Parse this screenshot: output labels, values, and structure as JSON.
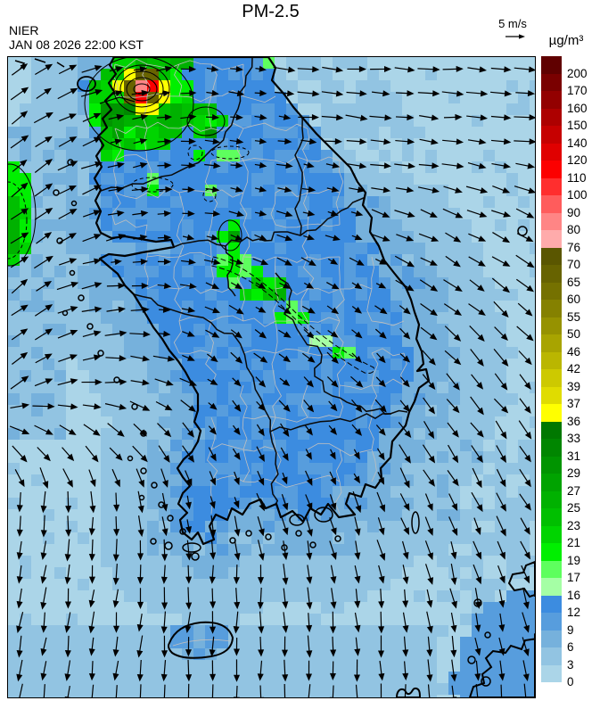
{
  "header": {
    "source": "NIER",
    "timestamp": "JAN 08 2026 22:00 KST",
    "title": "PM-2.5",
    "wind_scale": "5 m/s",
    "units": "µg/m³"
  },
  "colorbar": {
    "units": "µg/m³",
    "blocks": [
      {
        "label": "200",
        "color": "#600000"
      },
      {
        "label": "170",
        "color": "#7a0000"
      },
      {
        "label": "160",
        "color": "#930000"
      },
      {
        "label": "150",
        "color": "#ad0000"
      },
      {
        "label": "140",
        "color": "#c60000"
      },
      {
        "label": "120",
        "color": "#e00000"
      },
      {
        "label": "110",
        "color": "#fc0000"
      },
      {
        "label": "100",
        "color": "#ff2e2e"
      },
      {
        "label": "90",
        "color": "#ff5c5c"
      },
      {
        "label": "80",
        "color": "#ff8585"
      },
      {
        "label": "76",
        "color": "#ffabab"
      },
      {
        "label": "70",
        "color": "#5a5600"
      },
      {
        "label": "65",
        "color": "#676300"
      },
      {
        "label": "60",
        "color": "#757100"
      },
      {
        "label": "55",
        "color": "#858100"
      },
      {
        "label": "50",
        "color": "#969200"
      },
      {
        "label": "46",
        "color": "#a8a400"
      },
      {
        "label": "42",
        "color": "#bab600"
      },
      {
        "label": "39",
        "color": "#cdc900"
      },
      {
        "label": "37",
        "color": "#e0dc00"
      },
      {
        "label": "36",
        "color": "#ffff00"
      },
      {
        "label": "33",
        "color": "#007800"
      },
      {
        "label": "31",
        "color": "#008600"
      },
      {
        "label": "29",
        "color": "#009400"
      },
      {
        "label": "27",
        "color": "#00a300"
      },
      {
        "label": "25",
        "color": "#00b100"
      },
      {
        "label": "23",
        "color": "#00bf00"
      },
      {
        "label": "21",
        "color": "#00d400"
      },
      {
        "label": "19",
        "color": "#00ef00"
      },
      {
        "label": "17",
        "color": "#5eff5e"
      },
      {
        "label": "16",
        "color": "#a5ffa5"
      },
      {
        "label": "12",
        "color": "#3c8ce0"
      },
      {
        "label": "9",
        "color": "#579ddd"
      },
      {
        "label": "6",
        "color": "#76b1dc"
      },
      {
        "label": "3",
        "color": "#92c4e2"
      },
      {
        "label": "0",
        "color": "#abd5e8"
      }
    ]
  },
  "chart_data": {
    "type": "heatmap",
    "title": "PM-2.5",
    "source": "NIER",
    "valid_time": "JAN 08 2026 22:00 KST",
    "units": "µg/m³",
    "map_region": "South Korea (Korean Peninsula, Jeju, Ulleungdo; NW Japan coast in bottom-right corner)",
    "wind_reference_speed": "5 m/s",
    "colorbar_boundaries": [
      0,
      3,
      6,
      9,
      12,
      16,
      17,
      19,
      21,
      23,
      25,
      27,
      29,
      31,
      33,
      36,
      37,
      39,
      42,
      46,
      50,
      55,
      60,
      65,
      70,
      76,
      80,
      90,
      100,
      110,
      120,
      140,
      150,
      160,
      170,
      200
    ],
    "colorbar_colors_low_to_high": [
      "#abd5e8",
      "#92c4e2",
      "#76b1dc",
      "#579ddd",
      "#3c8ce0",
      "#a5ffa5",
      "#5eff5e",
      "#00ef00",
      "#00d400",
      "#00bf00",
      "#00b100",
      "#00a300",
      "#009400",
      "#008600",
      "#007800",
      "#ffff00",
      "#e0dc00",
      "#cdc900",
      "#bab600",
      "#a8a400",
      "#969200",
      "#858100",
      "#757100",
      "#676300",
      "#5a5600",
      "#ffabab",
      "#ff8585",
      "#ff5c5c",
      "#ff2e2e",
      "#fc0000",
      "#e00000",
      "#c60000",
      "#ad0000",
      "#930000",
      "#7a0000",
      "#600000"
    ],
    "features": [
      {
        "area": "Seoul metropolitan area (northwest)",
        "values_ug_m3": "110-200+",
        "note": "red hotspot with closed black contour rings (yellow/olive halo)"
      },
      {
        "area": "Gyeonggi and areas around Seoul",
        "values_ug_m3": "17-36 (greens)"
      },
      {
        "area": "Offshore plume at west map edge",
        "values_ug_m3": "17-27"
      },
      {
        "area": "Central inland band trending SE (Sejong-Daejeon-Chungbuk)",
        "values_ug_m3": "17-27"
      },
      {
        "area": "Most inland areas of South Korea",
        "values_ug_m3": "9-16 (blues)"
      },
      {
        "area": "Surrounding seas",
        "values_ug_m3": "0-9 (pale blues)"
      }
    ],
    "wind_pattern": "Northeasterly-to-easterly flow over the Yellow Sea and the north, turning east-southeastward over the East Sea and southward over the southern seas"
  }
}
